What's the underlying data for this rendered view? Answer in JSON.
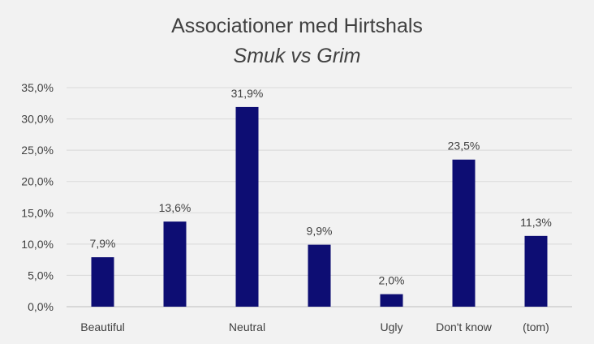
{
  "chart_data": {
    "type": "bar",
    "title": "Associationer med Hirtshals",
    "subtitle": "Smuk vs Grim",
    "categories": [
      "Beautiful",
      "",
      "Neutral",
      "",
      "Ugly",
      "Don't know",
      "(tom)"
    ],
    "values": [
      7.9,
      13.6,
      31.9,
      9.9,
      2.0,
      23.5,
      11.3
    ],
    "data_labels": [
      "7,9%",
      "13,6%",
      "31,9%",
      "9,9%",
      "2,0%",
      "23,5%",
      "11,3%"
    ],
    "y_ticks": [
      "0,0%",
      "5,0%",
      "10,0%",
      "15,0%",
      "20,0%",
      "25,0%",
      "30,0%",
      "35,0%"
    ],
    "ylim": [
      0,
      35
    ],
    "xlabel": "",
    "ylabel": "",
    "grid": true,
    "legend": "none",
    "bar_color": "#0d0d73"
  }
}
